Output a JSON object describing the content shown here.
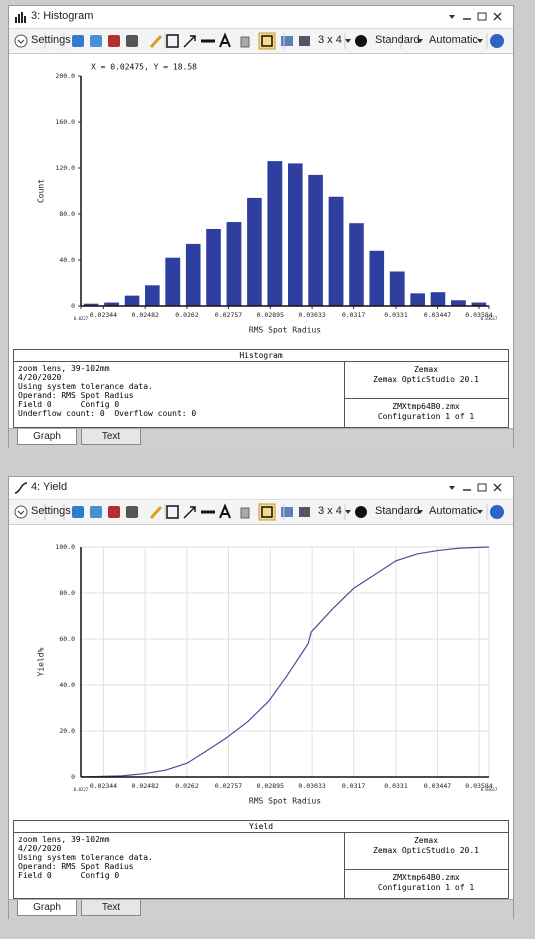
{
  "windows": [
    {
      "title": "3: Histogram",
      "toolbar": [
        "Settings",
        "3 x 4",
        "Standard",
        "Automatic"
      ],
      "box_title": "Histogram",
      "info_left": [
        "zoom lens, 39-102mm",
        "4/20/2020",
        "Using system tolerance data.",
        "Operand: RMS Spot Radius",
        "Field 0      Config 0",
        "Underflow count: 0  Overflow count: 0"
      ],
      "info_right": [
        "Zemax",
        "Zemax OpticStudio 20.1",
        "ZMXtmp64B0.zmx",
        "Configuration 1 of 1"
      ],
      "tabs": [
        "Graph",
        "Text"
      ]
    },
    {
      "title": "4: Yield",
      "toolbar": [
        "Settings",
        "3 x 4",
        "Standard",
        "Automatic"
      ],
      "box_title": "Yield",
      "info_left": [
        "zoom lens, 39-102mm",
        "4/20/2020",
        "Using system tolerance data.",
        "Operand: RMS Spot Radius",
        "Field 0      Config 0"
      ],
      "info_right": [
        "Zemax",
        "Zemax OpticStudio 20.1",
        "ZMXtmp64B0.zmx",
        "Configuration 1 of 1"
      ],
      "tabs": [
        "Graph",
        "Text"
      ]
    }
  ],
  "chart_data": [
    {
      "type": "histogram",
      "annotation": "X = 0.02475, Y = 18.58",
      "xlabel": "RMS Spot Radius",
      "ylabel": "Count",
      "color": "#2f3f9f",
      "grid": false,
      "bins": [
        0.0227,
        0.02337,
        0.02405,
        0.02472,
        0.02539,
        0.02607,
        0.02674,
        0.02741,
        0.02809,
        0.02876,
        0.02944,
        0.03011,
        0.03078,
        0.03146,
        0.03213,
        0.0328,
        0.03348,
        0.03415,
        0.03482,
        0.0355,
        0.03617
      ],
      "values": [
        2,
        3,
        9,
        18,
        42,
        54,
        67,
        73,
        94,
        126,
        124,
        114,
        95,
        72,
        48,
        30,
        11,
        12,
        5,
        3
      ],
      "xlim": [
        0.0227,
        0.03617
      ],
      "xticks": [
        0.0227,
        0.02344,
        0.02482,
        0.0262,
        0.02757,
        0.02895,
        0.03033,
        0.0317,
        0.0331,
        0.03447,
        0.03584,
        0.03617
      ],
      "ylim": [
        0,
        200
      ],
      "yticks": [
        0,
        {
          "value": 40,
          "label": "40.0"
        },
        {
          "value": 80,
          "label": "80.0"
        },
        {
          "value": 120,
          "label": "120.0"
        },
        {
          "value": 160,
          "label": "160.0"
        },
        {
          "value": 200,
          "label": "200.0"
        }
      ]
    },
    {
      "type": "line",
      "xlabel": "RMS Spot Radius",
      "ylabel": "Yield%",
      "color": "#4a4c9c",
      "grid": true,
      "x": [
        0.0227,
        0.02344,
        0.02405,
        0.02482,
        0.0255,
        0.0262,
        0.0268,
        0.0275,
        0.0282,
        0.0289,
        0.0295,
        0.0302,
        0.0303,
        0.031,
        0.0317,
        0.0324,
        0.0331,
        0.0338,
        0.0345,
        0.0352,
        0.03617
      ],
      "values": [
        0,
        0.3,
        0.5,
        1.5,
        3,
        6,
        11,
        17,
        24,
        33,
        44,
        58,
        63,
        73,
        82,
        88,
        94,
        97,
        98.5,
        99.5,
        100
      ],
      "xlim": [
        0.0227,
        0.03617
      ],
      "xticks": [
        0.0227,
        0.02344,
        0.02482,
        0.0262,
        0.02757,
        0.02895,
        0.03033,
        0.0317,
        0.0331,
        0.03447,
        0.03584,
        0.03617
      ],
      "ylim": [
        0,
        100
      ],
      "yticks": [
        0,
        {
          "value": 20,
          "label": "20.0"
        },
        {
          "value": 40,
          "label": "40.0"
        },
        {
          "value": 60,
          "label": "60.0"
        },
        {
          "value": 80,
          "label": "80.0"
        },
        {
          "value": 100,
          "label": "100.0"
        }
      ]
    }
  ]
}
